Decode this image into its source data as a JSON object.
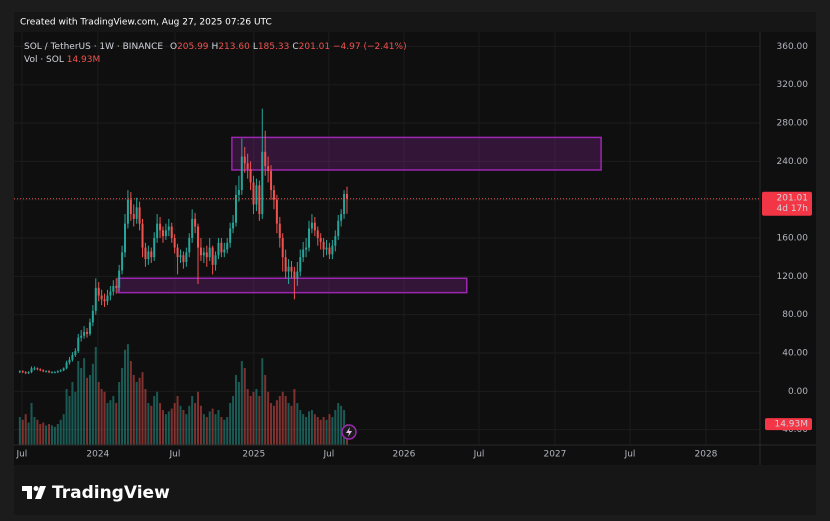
{
  "header": {
    "created": "Created with TradingView.com, Aug 27, 2025 07:26 UTC"
  },
  "chart_data": {
    "type": "candlestick",
    "symbol": "SOL / TetherUS · 1W · BINANCE",
    "ohlc_legend": [
      {
        "key": "O",
        "value": "205.99"
      },
      {
        "key": "H",
        "value": "213.60"
      },
      {
        "key": "L",
        "value": "185.33"
      },
      {
        "key": "C",
        "value": "201.01"
      }
    ],
    "change": "−4.97 (−2.41%)",
    "volume_legend": {
      "name": "Vol · SOL",
      "value": "14.93M"
    },
    "open": [
      20,
      21,
      20,
      19,
      20,
      24,
      24,
      23,
      22,
      21,
      21,
      20,
      20,
      20,
      21,
      22,
      24,
      30,
      33,
      38,
      42,
      56,
      58,
      62,
      60,
      72,
      84,
      108,
      100,
      96,
      94,
      100,
      104,
      110,
      108,
      126,
      145,
      175,
      200,
      185,
      180,
      192,
      175,
      150,
      138,
      146,
      140,
      160,
      175,
      168,
      162,
      168,
      172,
      160,
      150,
      140,
      142,
      135,
      145,
      160,
      180,
      172,
      150,
      142,
      145,
      140,
      150,
      132,
      142,
      155,
      145,
      148,
      155,
      170,
      176,
      205,
      210,
      245,
      238,
      232,
      218,
      195,
      215,
      185,
      250,
      235,
      230,
      210,
      200,
      175,
      160,
      140,
      125,
      130,
      125,
      118,
      125,
      140,
      148,
      150,
      170,
      176,
      168,
      160,
      156,
      148,
      150,
      143,
      152,
      162,
      178,
      185,
      205.99
    ],
    "high": [
      22,
      22,
      21,
      21,
      26,
      26,
      25,
      24,
      23,
      22,
      22,
      21,
      21,
      22,
      23,
      25,
      32,
      36,
      41,
      45,
      60,
      64,
      68,
      66,
      76,
      90,
      118,
      114,
      106,
      102,
      106,
      110,
      116,
      118,
      132,
      152,
      185,
      210,
      208,
      195,
      202,
      198,
      180,
      155,
      152,
      150,
      166,
      185,
      182,
      172,
      175,
      180,
      176,
      164,
      154,
      148,
      146,
      150,
      165,
      190,
      186,
      175,
      160,
      150,
      152,
      160,
      152,
      146,
      160,
      160,
      155,
      160,
      176,
      184,
      215,
      225,
      264,
      255,
      248,
      240,
      225,
      222,
      220,
      295,
      272,
      245,
      236,
      215,
      205,
      182,
      165,
      148,
      138,
      136,
      130,
      135,
      148,
      156,
      160,
      178,
      185,
      182,
      172,
      165,
      160,
      158,
      155,
      158,
      168,
      184,
      190,
      210,
      213.6
    ],
    "low": [
      19,
      19,
      18,
      18,
      19,
      22,
      22,
      21,
      20,
      20,
      19,
      19,
      19,
      19,
      20,
      21,
      23,
      28,
      31,
      36,
      40,
      52,
      55,
      56,
      58,
      68,
      80,
      94,
      90,
      88,
      90,
      95,
      100,
      102,
      104,
      122,
      140,
      170,
      178,
      172,
      175,
      168,
      140,
      130,
      132,
      134,
      136,
      155,
      160,
      155,
      158,
      162,
      155,
      144,
      122,
      134,
      128,
      130,
      140,
      155,
      165,
      112,
      136,
      134,
      130,
      136,
      122,
      126,
      138,
      140,
      140,
      144,
      150,
      165,
      172,
      198,
      205,
      228,
      222,
      210,
      185,
      188,
      178,
      180,
      225,
      218,
      200,
      190,
      165,
      150,
      125,
      118,
      112,
      118,
      96,
      110,
      120,
      135,
      140,
      146,
      165,
      162,
      152,
      148,
      140,
      142,
      138,
      138,
      146,
      158,
      172,
      180,
      185.33
    ],
    "close": [
      21,
      20,
      19,
      20,
      24,
      24,
      23,
      22,
      21,
      21,
      20,
      20,
      20,
      21,
      22,
      24,
      30,
      33,
      38,
      42,
      56,
      58,
      62,
      60,
      72,
      84,
      108,
      100,
      96,
      94,
      100,
      104,
      110,
      108,
      126,
      145,
      175,
      200,
      185,
      180,
      192,
      175,
      150,
      138,
      146,
      140,
      160,
      175,
      168,
      162,
      168,
      172,
      160,
      150,
      140,
      142,
      135,
      145,
      160,
      180,
      172,
      150,
      142,
      145,
      140,
      150,
      132,
      142,
      155,
      145,
      148,
      155,
      170,
      176,
      205,
      210,
      245,
      238,
      232,
      218,
      195,
      215,
      185,
      250,
      235,
      230,
      210,
      200,
      175,
      160,
      140,
      125,
      130,
      125,
      118,
      125,
      140,
      148,
      150,
      170,
      176,
      168,
      160,
      156,
      148,
      150,
      143,
      152,
      162,
      178,
      185,
      205.99,
      201.01
    ],
    "volume": [
      20,
      18,
      22,
      16,
      30,
      20,
      18,
      15,
      16,
      14,
      15,
      14,
      13,
      15,
      18,
      22,
      40,
      35,
      45,
      38,
      60,
      55,
      62,
      48,
      50,
      58,
      70,
      45,
      40,
      38,
      30,
      32,
      35,
      30,
      45,
      55,
      68,
      72,
      60,
      50,
      45,
      48,
      52,
      40,
      30,
      28,
      35,
      38,
      30,
      25,
      22,
      24,
      26,
      30,
      35,
      28,
      25,
      22,
      28,
      35,
      30,
      38,
      28,
      22,
      20,
      24,
      26,
      22,
      25,
      20,
      18,
      20,
      30,
      35,
      50,
      45,
      60,
      55,
      40,
      35,
      38,
      40,
      35,
      62,
      50,
      38,
      30,
      28,
      32,
      35,
      38,
      35,
      30,
      28,
      40,
      30,
      25,
      22,
      20,
      24,
      25,
      22,
      20,
      18,
      20,
      18,
      22,
      20,
      25,
      30,
      28,
      25,
      14.93
    ],
    "up_color": "#26a69a",
    "down_color": "#ef5350",
    "zone_color": "#9c27b0",
    "zones": [
      {
        "low": 231,
        "high": 265,
        "from": 72.6,
        "to": 199
      },
      {
        "low": 103,
        "high": 118,
        "from": 33.6,
        "to": 153
      }
    ],
    "last_price_label": "201.01",
    "countdown": "4d 17h",
    "volume_label": "14.93M",
    "ylim": [
      -56,
      375
    ],
    "yticks": [
      {
        "value": 360,
        "label": "360.00"
      },
      {
        "value": 320,
        "label": "320.00"
      },
      {
        "value": 280,
        "label": "280.00"
      },
      {
        "value": 240,
        "label": "240.00"
      },
      {
        "value": 200,
        "label": "200.00"
      },
      {
        "value": 160,
        "label": "160.00"
      },
      {
        "value": 120,
        "label": "120.00"
      },
      {
        "value": 80,
        "label": "80.00"
      },
      {
        "value": 40,
        "label": "40.00"
      },
      {
        "value": 0,
        "label": "0.00"
      },
      {
        "value": -40,
        "label": "−40.00"
      }
    ],
    "xlim": [
      -2,
      253.4
    ],
    "xticks": [
      {
        "value": 0.7,
        "label": "Jul"
      },
      {
        "value": 26.7,
        "label": "2024"
      },
      {
        "value": 53.1,
        "label": "Jul"
      },
      {
        "value": 80.1,
        "label": "2025"
      },
      {
        "value": 105.8,
        "label": "Jul"
      },
      {
        "value": 131.5,
        "label": "2026"
      },
      {
        "value": 157.2,
        "label": "Jul"
      },
      {
        "value": 183.2,
        "label": "2027"
      },
      {
        "value": 208.9,
        "label": "Jul"
      },
      {
        "value": 234.9,
        "label": "2028"
      }
    ],
    "grid": true
  },
  "footer": {
    "brand": "TradingView"
  }
}
